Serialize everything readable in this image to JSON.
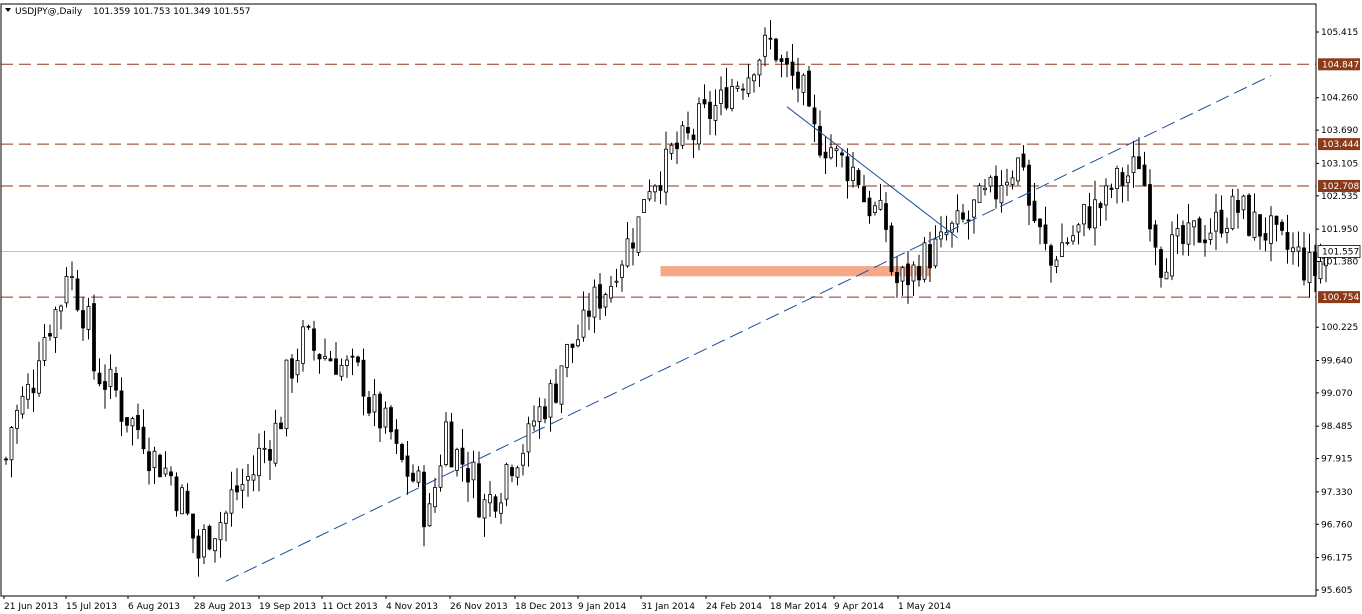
{
  "header": {
    "symbol": "USDJPY@,Daily",
    "ohlc": "101.359 101.753 101.349 101.557",
    "menu_icon": "triangle-down-icon"
  },
  "colors": {
    "background": "#ffffff",
    "candle": "#000000",
    "resistance_line": "#8b3a1a",
    "resistance_badge": "#8b3a1a",
    "trendline": "#1f4e9a",
    "support_zone": "#f4a07c",
    "current_price_line": "#c0c0c0",
    "current_price_badge": "#ffffff"
  },
  "chart_data": {
    "type": "candlestick",
    "title": "USDJPY@,Daily",
    "x_ticks": [
      "21 Jun 2013",
      "15 Jul 2013",
      "6 Aug 2013",
      "28 Aug 2013",
      "19 Sep 2013",
      "11 Oct 2013",
      "4 Nov 2013",
      "26 Nov 2013",
      "18 Dec 2013",
      "9 Jan 2014",
      "31 Jan 2014",
      "24 Feb 2014",
      "18 Mar 2014",
      "9 Apr 2014",
      "1 May 2014"
    ],
    "y_ticks": [
      "105.415",
      "104.260",
      "103.690",
      "103.105",
      "102.535",
      "101.950",
      "101.380",
      "100.225",
      "99.640",
      "99.070",
      "98.485",
      "97.915",
      "97.330",
      "96.760",
      "96.175",
      "95.605"
    ],
    "ylim": [
      95.605,
      105.415
    ],
    "horizontal_levels": [
      {
        "label": "104.847",
        "value": 104.847,
        "style": "dashed"
      },
      {
        "label": "103.444",
        "value": 103.444,
        "style": "dashed"
      },
      {
        "label": "102.708",
        "value": 102.708,
        "style": "dashed"
      },
      {
        "label": "100.754",
        "value": 100.754,
        "style": "dashed"
      }
    ],
    "current_price": {
      "label": "101.557",
      "value": 101.557
    },
    "support_zone": {
      "from_bar": 119,
      "to_bar": 168,
      "low": 101.12,
      "high": 101.3
    },
    "trendlines": [
      {
        "name": "rising-support",
        "style": "dashed",
        "points": [
          {
            "bar": 40,
            "value": 95.76
          },
          {
            "bar": 230,
            "value": 104.65
          }
        ]
      },
      {
        "name": "falling-resistance",
        "style": "solid",
        "points": [
          {
            "bar": 142,
            "value": 104.1
          },
          {
            "bar": 173,
            "value": 101.8
          }
        ]
      }
    ],
    "key_closes": [
      {
        "date": "21 Jun 2013",
        "close": 97.9
      },
      {
        "date": "8 Jul 2013",
        "close": 101.3
      },
      {
        "date": "15 Jul 2013",
        "close": 99.5
      },
      {
        "date": "6 Aug 2013",
        "close": 97.2
      },
      {
        "date": "9 Aug 2013",
        "close": 96.2
      },
      {
        "date": "28 Aug 2013",
        "close": 98.2
      },
      {
        "date": "5 Sep 2013",
        "close": 100.0
      },
      {
        "date": "19 Sep 2013",
        "close": 99.4
      },
      {
        "date": "8 Oct 2013",
        "close": 96.9
      },
      {
        "date": "11 Oct 2013",
        "close": 98.5
      },
      {
        "date": "22 Oct 2013",
        "close": 97.1
      },
      {
        "date": "4 Nov 2013",
        "close": 98.6
      },
      {
        "date": "15 Nov 2013",
        "close": 100.2
      },
      {
        "date": "26 Nov 2013",
        "close": 101.5
      },
      {
        "date": "3 Dec 2013",
        "close": 102.8
      },
      {
        "date": "18 Dec 2013",
        "close": 104.0
      },
      {
        "date": "2 Jan 2014",
        "close": 105.2
      },
      {
        "date": "9 Jan 2014",
        "close": 104.5
      },
      {
        "date": "14 Jan 2014",
        "close": 103.6
      },
      {
        "date": "23 Jan 2014",
        "close": 103.0
      },
      {
        "date": "31 Jan 2014",
        "close": 102.0
      },
      {
        "date": "4 Feb 2014",
        "close": 101.0
      },
      {
        "date": "24 Feb 2014",
        "close": 102.3
      },
      {
        "date": "7 Mar 2014",
        "close": 103.2
      },
      {
        "date": "14 Mar 2014",
        "close": 101.3
      },
      {
        "date": "18 Mar 2014",
        "close": 101.7
      },
      {
        "date": "7 Apr 2014",
        "close": 103.2
      },
      {
        "date": "11 Apr 2014",
        "close": 101.4
      },
      {
        "date": "1 May 2014",
        "close": 102.3
      },
      {
        "date": "21 May 2014",
        "close": 101.2
      },
      {
        "date": "23 May 2014",
        "close": 101.557
      }
    ],
    "grid": false,
    "legend": "none"
  }
}
